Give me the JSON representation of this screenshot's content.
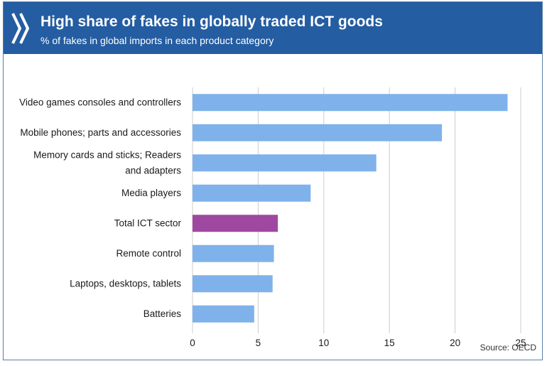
{
  "header": {
    "title": "High share of fakes in globally traded ICT goods",
    "subtitle": "% of fakes in global imports in each product category",
    "background": "#245da1"
  },
  "footer": {
    "source": "Source: OECD"
  },
  "chart_data": {
    "type": "bar",
    "orientation": "horizontal",
    "categories": [
      "Video games consoles and controllers",
      "Mobile phones; parts and accessories",
      "Memory cards and sticks; Readers and adapters",
      "Media players",
      "Total ICT sector",
      "Remote control",
      "Laptops, desktops, tablets",
      "Batteries"
    ],
    "category_label_lines": [
      [
        "Video games consoles and controllers"
      ],
      [
        "Mobile phones; parts and accessories"
      ],
      [
        "Memory cards and sticks; Readers",
        "and adapters"
      ],
      [
        "Media players"
      ],
      [
        "Total ICT sector"
      ],
      [
        "Remote control"
      ],
      [
        "Laptops, desktops, tablets"
      ],
      [
        "Batteries"
      ]
    ],
    "values": [
      24,
      19,
      14,
      9,
      6.5,
      6.2,
      6.1,
      4.7
    ],
    "highlight_index": 4,
    "xlim": [
      0,
      25
    ],
    "xticks": [
      0,
      5,
      10,
      15,
      20,
      25
    ],
    "grid": true,
    "colors": {
      "bar": "#7fb2ea",
      "highlight": "#9e48a0",
      "grid": "#cccccc"
    },
    "title": "",
    "xlabel": "",
    "ylabel": ""
  }
}
